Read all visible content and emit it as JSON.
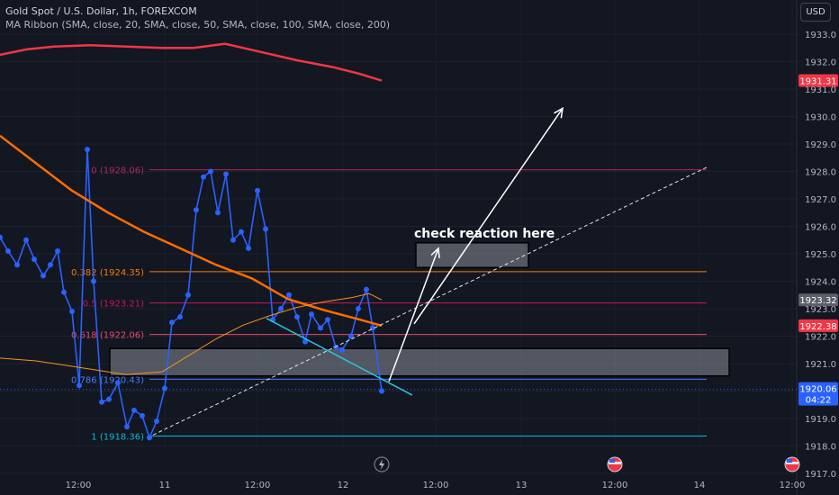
{
  "header": {
    "title": "Gold Spot / U.S. Dollar, 1h, FOREXCOM",
    "indicator": "MA Ribbon (SMA, close, 20, SMA, close, 50, SMA, close, 100, SMA, close, 200)",
    "currency": "USD"
  },
  "annotation": {
    "text": "check reaction here"
  },
  "colors": {
    "background": "#131722",
    "price_line": "#2962ff",
    "sma_red": "#f23645",
    "sma_orange": "#ff6d00",
    "sma_thin": "#f7931a",
    "fib_0": "#b2245e",
    "fib_0382": "#f57c00",
    "fib_05": "#c2185b",
    "fib_0618": "#e64a6a",
    "fib_0786": "#4a78ff",
    "fib_1": "#00bcd4",
    "trend_cyan": "#26c6da"
  },
  "chart_data": {
    "type": "line",
    "title": "Gold Spot / U.S. Dollar, 1h, FOREXCOM",
    "y_axis": {
      "ticks": [
        1917.0,
        1918.0,
        1919.0,
        1920.0,
        1921.0,
        1922.0,
        1923.0,
        1924.0,
        1925.0,
        1926.0,
        1927.0,
        1928.0,
        1929.0,
        1930.0,
        1931.0,
        1932.0,
        1933.0
      ],
      "ylim": [
        1916.9,
        1934.2
      ],
      "side": "right"
    },
    "x_axis": {
      "ticks": [
        "12:00",
        "11",
        "12:00",
        "12",
        "12:00",
        "13",
        "12:00",
        "14",
        "12:00"
      ]
    },
    "price_badges": [
      {
        "label": "1931.31",
        "value": 1931.31,
        "color": "#f23645"
      },
      {
        "label": "1923.32",
        "value": 1923.32,
        "color": "#5d606b"
      },
      {
        "label": "1922.38",
        "value": 1922.38,
        "color": "#f23645"
      },
      {
        "label": "1920.06",
        "value": 1920.06,
        "color": "#2962ff",
        "sub": "04:22"
      }
    ],
    "fib_levels": [
      {
        "label": "0 (1928.06)",
        "ratio": 0,
        "price": 1928.06,
        "color": "#b2245e"
      },
      {
        "label": "0.382 (1924.35)",
        "ratio": 0.382,
        "price": 1924.35,
        "color": "#f57c00"
      },
      {
        "label": "0.5 (1923.21)",
        "ratio": 0.5,
        "price": 1923.21,
        "color": "#c2185b"
      },
      {
        "label": "0.618 (1922.06)",
        "ratio": 0.618,
        "price": 1922.06,
        "color": "#e64a6a"
      },
      {
        "label": "0.786 (1920.43)",
        "ratio": 0.786,
        "price": 1920.43,
        "color": "#4a78ff"
      },
      {
        "label": "1 (1918.36)",
        "ratio": 1,
        "price": 1918.36,
        "color": "#00bcd4"
      }
    ],
    "zones": [
      {
        "name": "support-zone",
        "price_top": 1921.55,
        "price_bottom": 1920.55
      },
      {
        "name": "target-zone",
        "price_top": 1925.4,
        "price_bottom": 1924.5
      }
    ],
    "series": [
      {
        "kind": "price",
        "color": "#2962ff",
        "points": [
          [
            0,
            1925.6
          ],
          [
            9,
            1925.1
          ],
          [
            19,
            1924.6
          ],
          [
            29,
            1925.5
          ],
          [
            38,
            1924.8
          ],
          [
            48,
            1924.2
          ],
          [
            56,
            1924.6
          ],
          [
            64,
            1925.1
          ],
          [
            71,
            1923.6
          ],
          [
            80,
            1922.9
          ],
          [
            88,
            1920.2
          ],
          [
            97,
            1928.8
          ],
          [
            104,
            1924.0
          ],
          [
            113,
            1919.6
          ],
          [
            121,
            1919.7
          ],
          [
            131,
            1920.3
          ],
          [
            141,
            1918.7
          ],
          [
            149,
            1919.3
          ],
          [
            158,
            1919.1
          ],
          [
            166,
            1918.3
          ],
          [
            174,
            1918.9
          ],
          [
            183,
            1920.1
          ],
          [
            191,
            1922.5
          ],
          [
            200,
            1922.7
          ],
          [
            209,
            1923.5
          ],
          [
            218,
            1926.6
          ],
          [
            226,
            1927.8
          ],
          [
            234,
            1928.0
          ],
          [
            242,
            1926.5
          ],
          [
            251,
            1927.9
          ],
          [
            259,
            1925.5
          ],
          [
            268,
            1925.8
          ],
          [
            276,
            1925.2
          ],
          [
            286,
            1927.3
          ],
          [
            295,
            1925.9
          ],
          [
            303,
            1922.6
          ],
          [
            312,
            1923.0
          ],
          [
            321,
            1923.5
          ],
          [
            330,
            1922.7
          ],
          [
            339,
            1921.8
          ],
          [
            346,
            1922.8
          ],
          [
            356,
            1922.3
          ],
          [
            364,
            1922.6
          ],
          [
            373,
            1921.6
          ],
          [
            380,
            1921.5
          ],
          [
            390,
            1922.0
          ],
          [
            398,
            1923.0
          ],
          [
            407,
            1923.7
          ],
          [
            414,
            1922.3
          ],
          [
            424,
            1920.0
          ]
        ]
      },
      {
        "kind": "sma",
        "name": "SMA 200",
        "color": "#f23645",
        "points": [
          [
            0,
            1932.25
          ],
          [
            30,
            1932.45
          ],
          [
            60,
            1932.55
          ],
          [
            100,
            1932.6
          ],
          [
            140,
            1932.55
          ],
          [
            180,
            1932.5
          ],
          [
            215,
            1932.5
          ],
          [
            250,
            1932.65
          ],
          [
            290,
            1932.35
          ],
          [
            330,
            1932.05
          ],
          [
            370,
            1931.8
          ],
          [
            400,
            1931.55
          ],
          [
            424,
            1931.31
          ]
        ]
      },
      {
        "kind": "sma",
        "name": "SMA 100",
        "color": "#ff6d00",
        "points": [
          [
            0,
            1929.3
          ],
          [
            40,
            1928.3
          ],
          [
            80,
            1927.3
          ],
          [
            120,
            1926.5
          ],
          [
            160,
            1925.8
          ],
          [
            200,
            1925.2
          ],
          [
            240,
            1924.6
          ],
          [
            280,
            1924.1
          ],
          [
            320,
            1923.35
          ],
          [
            360,
            1922.95
          ],
          [
            400,
            1922.6
          ],
          [
            424,
            1922.38
          ]
        ]
      },
      {
        "kind": "sma",
        "name": "SMA 50",
        "color": "#f7931a",
        "points": [
          [
            0,
            1921.2
          ],
          [
            40,
            1921.1
          ],
          [
            80,
            1920.9
          ],
          [
            110,
            1920.75
          ],
          [
            140,
            1920.6
          ],
          [
            180,
            1920.7
          ],
          [
            210,
            1921.3
          ],
          [
            240,
            1921.9
          ],
          [
            270,
            1922.4
          ],
          [
            300,
            1922.75
          ],
          [
            330,
            1923.05
          ],
          [
            360,
            1923.25
          ],
          [
            390,
            1923.4
          ],
          [
            410,
            1923.55
          ],
          [
            424,
            1923.32
          ]
        ]
      }
    ],
    "drawings": [
      {
        "kind": "trend-dashed",
        "from": [
          170,
          1918.4
        ],
        "to": [
          785,
          1928.15
        ]
      },
      {
        "kind": "trend-cyan",
        "from": [
          296,
          1922.65
        ],
        "to": [
          458,
          1919.85
        ]
      },
      {
        "kind": "arrow",
        "from": [
          432,
          1920.35
        ],
        "to": [
          487,
          1925.2
        ]
      },
      {
        "kind": "arrow",
        "from": [
          460,
          1922.45
        ],
        "to": [
          625,
          1930.3
        ]
      }
    ]
  }
}
